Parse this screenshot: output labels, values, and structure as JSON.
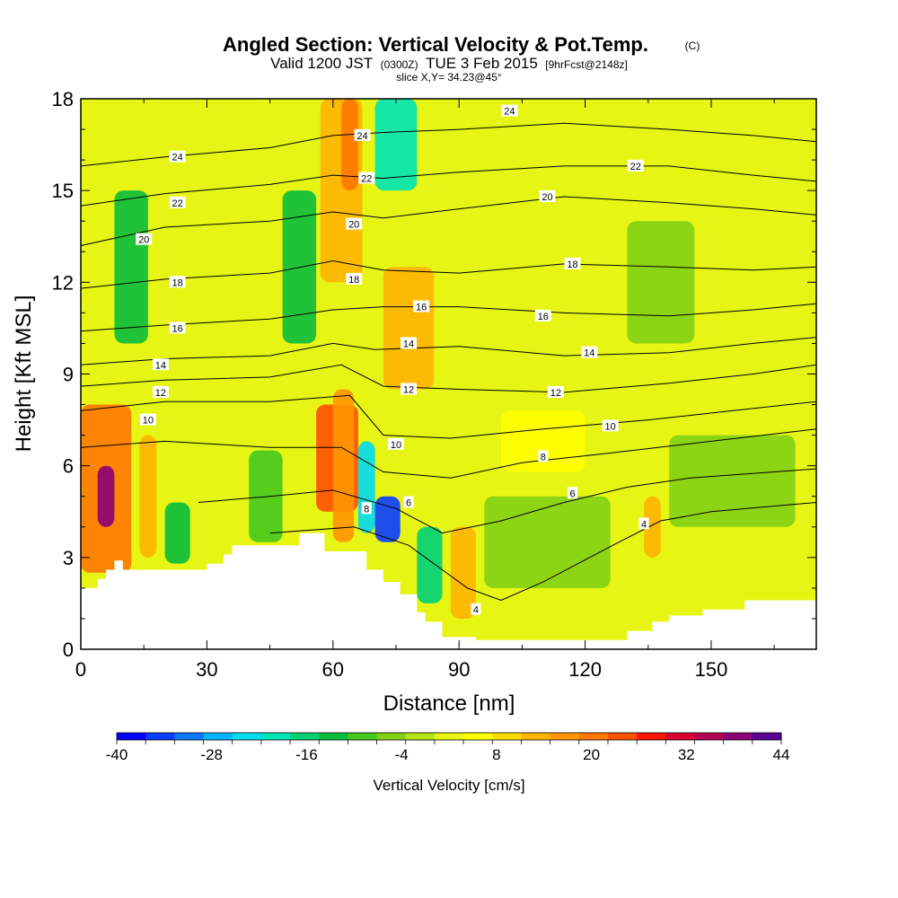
{
  "chart_data": {
    "type": "heatmap",
    "title": "Angled Section: Vertical Velocity & Pot.Temp.",
    "title_suffix": "(C)",
    "subtitle_a": "Valid 1200 JST",
    "subtitle_b": "(0300Z)",
    "subtitle_c": "TUE 3 Feb 2015",
    "subtitle_d": "[9hrFcst@2148z]",
    "slice_label": "slice X,Y= 34.23@45°",
    "xlabel": "Distance [nm]",
    "ylabel": "Height [Kft MSL]",
    "xlim": [
      0,
      175
    ],
    "ylim": [
      0,
      18
    ],
    "xticks": [
      "0",
      "30",
      "60",
      "90",
      "120",
      "150"
    ],
    "yticks": [
      "0",
      "3",
      "6",
      "9",
      "12",
      "15",
      "18"
    ],
    "colorbar": {
      "label": "Vertical Velocity [cm/s]",
      "min": -40,
      "max": 44,
      "step": 4,
      "ticks": [
        "-40",
        "-28",
        "-16",
        "-4",
        "8",
        "20",
        "32",
        "44"
      ],
      "colors": [
        "#0000ff",
        "#0a3cff",
        "#0a78ff",
        "#00b4ff",
        "#00dcf0",
        "#00e6b4",
        "#00d278",
        "#0abe3c",
        "#46c81e",
        "#82d214",
        "#b4e614",
        "#e6f514",
        "#ffff00",
        "#ffdc00",
        "#ffb400",
        "#ff9600",
        "#ff7800",
        "#ff5000",
        "#ff1400",
        "#dc0032",
        "#b40050",
        "#8c0078",
        "#5a0096"
      ]
    },
    "velocity_cells": [
      {
        "x": 0,
        "y": 2.5,
        "w": 12,
        "h": 5.5,
        "v": 26
      },
      {
        "x": 4,
        "y": 4,
        "w": 4,
        "h": 2,
        "v": 44
      },
      {
        "x": 14,
        "y": 3,
        "w": 4,
        "h": 4,
        "v": 16
      },
      {
        "x": 20,
        "y": 2.8,
        "w": 6,
        "h": 2,
        "v": -12
      },
      {
        "x": 40,
        "y": 3.5,
        "w": 8,
        "h": 3,
        "v": -8
      },
      {
        "x": 56,
        "y": 4.5,
        "w": 10,
        "h": 3.5,
        "v": 28
      },
      {
        "x": 60,
        "y": 3.5,
        "w": 5,
        "h": 5,
        "v": 20
      },
      {
        "x": 57,
        "y": 12,
        "w": 10,
        "h": 6,
        "v": 16
      },
      {
        "x": 62,
        "y": 15,
        "w": 4,
        "h": 3,
        "v": 24
      },
      {
        "x": 70,
        "y": 15,
        "w": 10,
        "h": 3,
        "v": -20
      },
      {
        "x": 66,
        "y": 3.8,
        "w": 4,
        "h": 3,
        "v": -24
      },
      {
        "x": 70,
        "y": 3.5,
        "w": 6,
        "h": 1.5,
        "v": -36
      },
      {
        "x": 80,
        "y": 1.5,
        "w": 6,
        "h": 2.5,
        "v": -16
      },
      {
        "x": 72,
        "y": 8.5,
        "w": 12,
        "h": 4,
        "v": 16
      },
      {
        "x": 88,
        "y": 1,
        "w": 6,
        "h": 3,
        "v": 16
      },
      {
        "x": 100,
        "y": 5.8,
        "w": 20,
        "h": 2,
        "v": 10
      },
      {
        "x": 134,
        "y": 3,
        "w": 4,
        "h": 2,
        "v": 18
      },
      {
        "x": 8,
        "y": 10,
        "w": 8,
        "h": 5,
        "v": -12
      },
      {
        "x": 48,
        "y": 10,
        "w": 8,
        "h": 5,
        "v": -12
      },
      {
        "x": 130,
        "y": 10,
        "w": 16,
        "h": 4,
        "v": -4
      },
      {
        "x": 140,
        "y": 4,
        "w": 30,
        "h": 3,
        "v": -4
      },
      {
        "x": 96,
        "y": 2,
        "w": 30,
        "h": 3,
        "v": -4
      }
    ],
    "terrain": [
      [
        0,
        2
      ],
      [
        4,
        2
      ],
      [
        4,
        2.3
      ],
      [
        6,
        2.3
      ],
      [
        6,
        2.6
      ],
      [
        8,
        2.6
      ],
      [
        8,
        2.9
      ],
      [
        10,
        2.9
      ],
      [
        10,
        2.6
      ],
      [
        30,
        2.6
      ],
      [
        30,
        2.8
      ],
      [
        34,
        2.8
      ],
      [
        34,
        3.1
      ],
      [
        36,
        3.1
      ],
      [
        36,
        3.4
      ],
      [
        52,
        3.4
      ],
      [
        52,
        3.8
      ],
      [
        58,
        3.8
      ],
      [
        58,
        3.2
      ],
      [
        68,
        3.2
      ],
      [
        68,
        2.6
      ],
      [
        72,
        2.6
      ],
      [
        72,
        2.2
      ],
      [
        76,
        2.2
      ],
      [
        76,
        1.8
      ],
      [
        80,
        1.8
      ],
      [
        80,
        1.2
      ],
      [
        82,
        1.2
      ],
      [
        82,
        0.9
      ],
      [
        86,
        0.9
      ],
      [
        86,
        0.4
      ],
      [
        94,
        0.4
      ],
      [
        94,
        0.3
      ],
      [
        130,
        0.3
      ],
      [
        130,
        0.6
      ],
      [
        136,
        0.6
      ],
      [
        136,
        0.9
      ],
      [
        140,
        0.9
      ],
      [
        140,
        1.1
      ],
      [
        148,
        1.1
      ],
      [
        148,
        1.3
      ],
      [
        158,
        1.3
      ],
      [
        158,
        1.6
      ],
      [
        175,
        1.6
      ]
    ],
    "isentropes": [
      {
        "label": "4",
        "points": [
          [
            45,
            3.8
          ],
          [
            65,
            4
          ],
          [
            78,
            3.4
          ],
          [
            92,
            2
          ],
          [
            100,
            1.6
          ],
          [
            110,
            2.2
          ],
          [
            128,
            3.5
          ],
          [
            138,
            4.2
          ],
          [
            150,
            4.5
          ],
          [
            175,
            4.8
          ]
        ]
      },
      {
        "label": "6",
        "points": [
          [
            28,
            4.8
          ],
          [
            45,
            5
          ],
          [
            60,
            5.2
          ],
          [
            75,
            4.6
          ],
          [
            86,
            3.8
          ],
          [
            100,
            4.2
          ],
          [
            115,
            4.8
          ],
          [
            130,
            5.3
          ],
          [
            145,
            5.6
          ],
          [
            175,
            5.9
          ]
        ]
      },
      {
        "label": "8",
        "points": [
          [
            0,
            6.6
          ],
          [
            20,
            6.8
          ],
          [
            45,
            6.6
          ],
          [
            62,
            6.6
          ],
          [
            72,
            5.8
          ],
          [
            88,
            5.6
          ],
          [
            105,
            6.1
          ],
          [
            125,
            6.4
          ],
          [
            150,
            6.8
          ],
          [
            175,
            7.2
          ]
        ]
      },
      {
        "label": "10",
        "points": [
          [
            0,
            7.8
          ],
          [
            20,
            8.1
          ],
          [
            45,
            8.1
          ],
          [
            64,
            8.3
          ],
          [
            72,
            7.0
          ],
          [
            88,
            6.9
          ],
          [
            110,
            7.2
          ],
          [
            135,
            7.5
          ],
          [
            155,
            7.8
          ],
          [
            175,
            8.1
          ]
        ]
      },
      {
        "label": "12",
        "points": [
          [
            0,
            8.6
          ],
          [
            20,
            8.8
          ],
          [
            45,
            8.9
          ],
          [
            62,
            9.3
          ],
          [
            72,
            8.6
          ],
          [
            90,
            8.5
          ],
          [
            115,
            8.4
          ],
          [
            140,
            8.7
          ],
          [
            160,
            9.0
          ],
          [
            175,
            9.3
          ]
        ]
      },
      {
        "label": "14",
        "points": [
          [
            0,
            9.3
          ],
          [
            20,
            9.5
          ],
          [
            45,
            9.6
          ],
          [
            60,
            10.0
          ],
          [
            70,
            9.8
          ],
          [
            90,
            9.9
          ],
          [
            115,
            9.6
          ],
          [
            140,
            9.7
          ],
          [
            160,
            10.0
          ],
          [
            175,
            10.2
          ]
        ]
      },
      {
        "label": "16",
        "points": [
          [
            0,
            10.4
          ],
          [
            20,
            10.6
          ],
          [
            45,
            10.8
          ],
          [
            60,
            11.1
          ],
          [
            72,
            11.2
          ],
          [
            90,
            11.2
          ],
          [
            115,
            11.0
          ],
          [
            140,
            10.9
          ],
          [
            160,
            11.1
          ],
          [
            175,
            11.3
          ]
        ]
      },
      {
        "label": "18",
        "points": [
          [
            0,
            11.8
          ],
          [
            20,
            12.1
          ],
          [
            45,
            12.3
          ],
          [
            60,
            12.7
          ],
          [
            72,
            12.4
          ],
          [
            90,
            12.3
          ],
          [
            115,
            12.6
          ],
          [
            140,
            12.5
          ],
          [
            160,
            12.4
          ],
          [
            175,
            12.5
          ]
        ]
      },
      {
        "label": "20",
        "points": [
          [
            0,
            13.2
          ],
          [
            20,
            13.8
          ],
          [
            45,
            14.0
          ],
          [
            60,
            14.3
          ],
          [
            72,
            14.1
          ],
          [
            90,
            14.4
          ],
          [
            115,
            14.8
          ],
          [
            140,
            14.6
          ],
          [
            160,
            14.4
          ],
          [
            175,
            14.2
          ]
        ]
      },
      {
        "label": "22",
        "points": [
          [
            0,
            14.5
          ],
          [
            20,
            14.9
          ],
          [
            45,
            15.2
          ],
          [
            60,
            15.5
          ],
          [
            72,
            15.4
          ],
          [
            90,
            15.6
          ],
          [
            115,
            15.8
          ],
          [
            140,
            15.8
          ],
          [
            160,
            15.5
          ],
          [
            175,
            15.3
          ]
        ]
      },
      {
        "label": "24",
        "points": [
          [
            0,
            15.8
          ],
          [
            20,
            16.1
          ],
          [
            45,
            16.4
          ],
          [
            60,
            16.8
          ],
          [
            72,
            16.9
          ],
          [
            90,
            17.0
          ],
          [
            115,
            17.2
          ],
          [
            140,
            17.0
          ],
          [
            160,
            16.8
          ],
          [
            175,
            16.6
          ]
        ]
      }
    ],
    "contour_labels": [
      {
        "text": "4",
        "x": 94,
        "y": 1.3
      },
      {
        "text": "4",
        "x": 134,
        "y": 4.1
      },
      {
        "text": "6",
        "x": 78,
        "y": 4.8
      },
      {
        "text": "6",
        "x": 117,
        "y": 5.1
      },
      {
        "text": "8",
        "x": 68,
        "y": 4.6
      },
      {
        "text": "8",
        "x": 110,
        "y": 6.3
      },
      {
        "text": "10",
        "x": 16,
        "y": 7.5
      },
      {
        "text": "10",
        "x": 75,
        "y": 6.7
      },
      {
        "text": "10",
        "x": 126,
        "y": 7.3
      },
      {
        "text": "12",
        "x": 19,
        "y": 8.4
      },
      {
        "text": "12",
        "x": 78,
        "y": 8.5
      },
      {
        "text": "12",
        "x": 113,
        "y": 8.4
      },
      {
        "text": "14",
        "x": 19,
        "y": 9.3
      },
      {
        "text": "14",
        "x": 78,
        "y": 10.0
      },
      {
        "text": "14",
        "x": 121,
        "y": 9.7
      },
      {
        "text": "16",
        "x": 23,
        "y": 10.5
      },
      {
        "text": "16",
        "x": 81,
        "y": 11.2
      },
      {
        "text": "16",
        "x": 110,
        "y": 10.9
      },
      {
        "text": "18",
        "x": 23,
        "y": 12.0
      },
      {
        "text": "18",
        "x": 65,
        "y": 12.1
      },
      {
        "text": "18",
        "x": 117,
        "y": 12.6
      },
      {
        "text": "20",
        "x": 15,
        "y": 13.4
      },
      {
        "text": "20",
        "x": 65,
        "y": 13.9
      },
      {
        "text": "20",
        "x": 111,
        "y": 14.8
      },
      {
        "text": "22",
        "x": 23,
        "y": 14.6
      },
      {
        "text": "22",
        "x": 68,
        "y": 15.4
      },
      {
        "text": "22",
        "x": 132,
        "y": 15.8
      },
      {
        "text": "24",
        "x": 23,
        "y": 16.1
      },
      {
        "text": "24",
        "x": 67,
        "y": 16.8
      },
      {
        "text": "24",
        "x": 102,
        "y": 17.6
      }
    ]
  }
}
